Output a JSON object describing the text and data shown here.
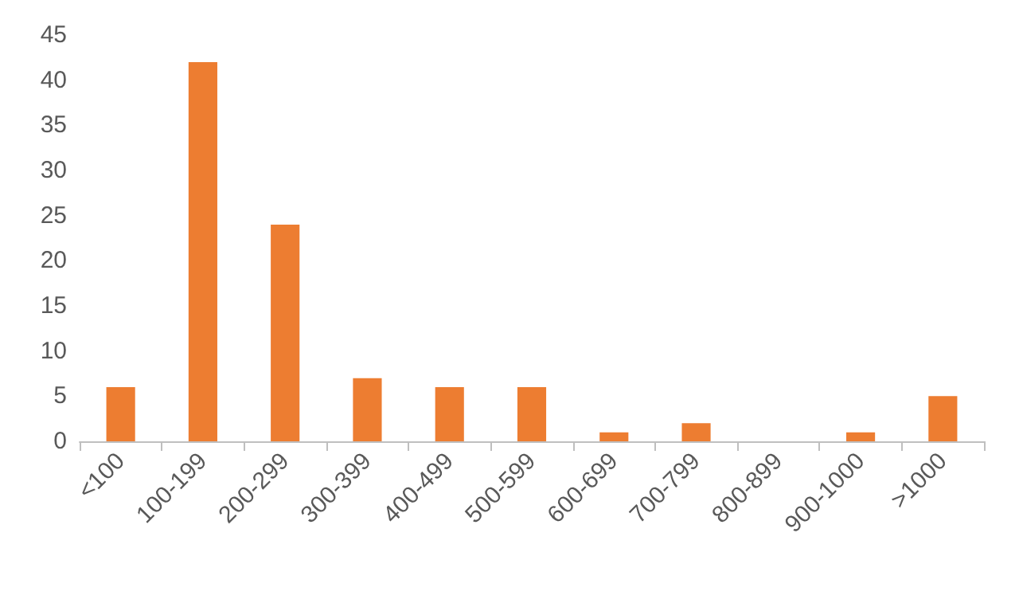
{
  "chart_data": {
    "type": "bar",
    "categories": [
      "<100",
      "100-199",
      "200-299",
      "300-399",
      "400-499",
      "500-599",
      "600-699",
      "700-799",
      "800-899",
      "900-1000",
      ">1000"
    ],
    "values": [
      6,
      42,
      24,
      7,
      6,
      6,
      1,
      2,
      0,
      1,
      5
    ],
    "color": "#ed7d31",
    "ylim": [
      0,
      45
    ],
    "yticks": [
      0,
      5,
      10,
      15,
      20,
      25,
      30,
      35,
      40,
      45
    ]
  }
}
